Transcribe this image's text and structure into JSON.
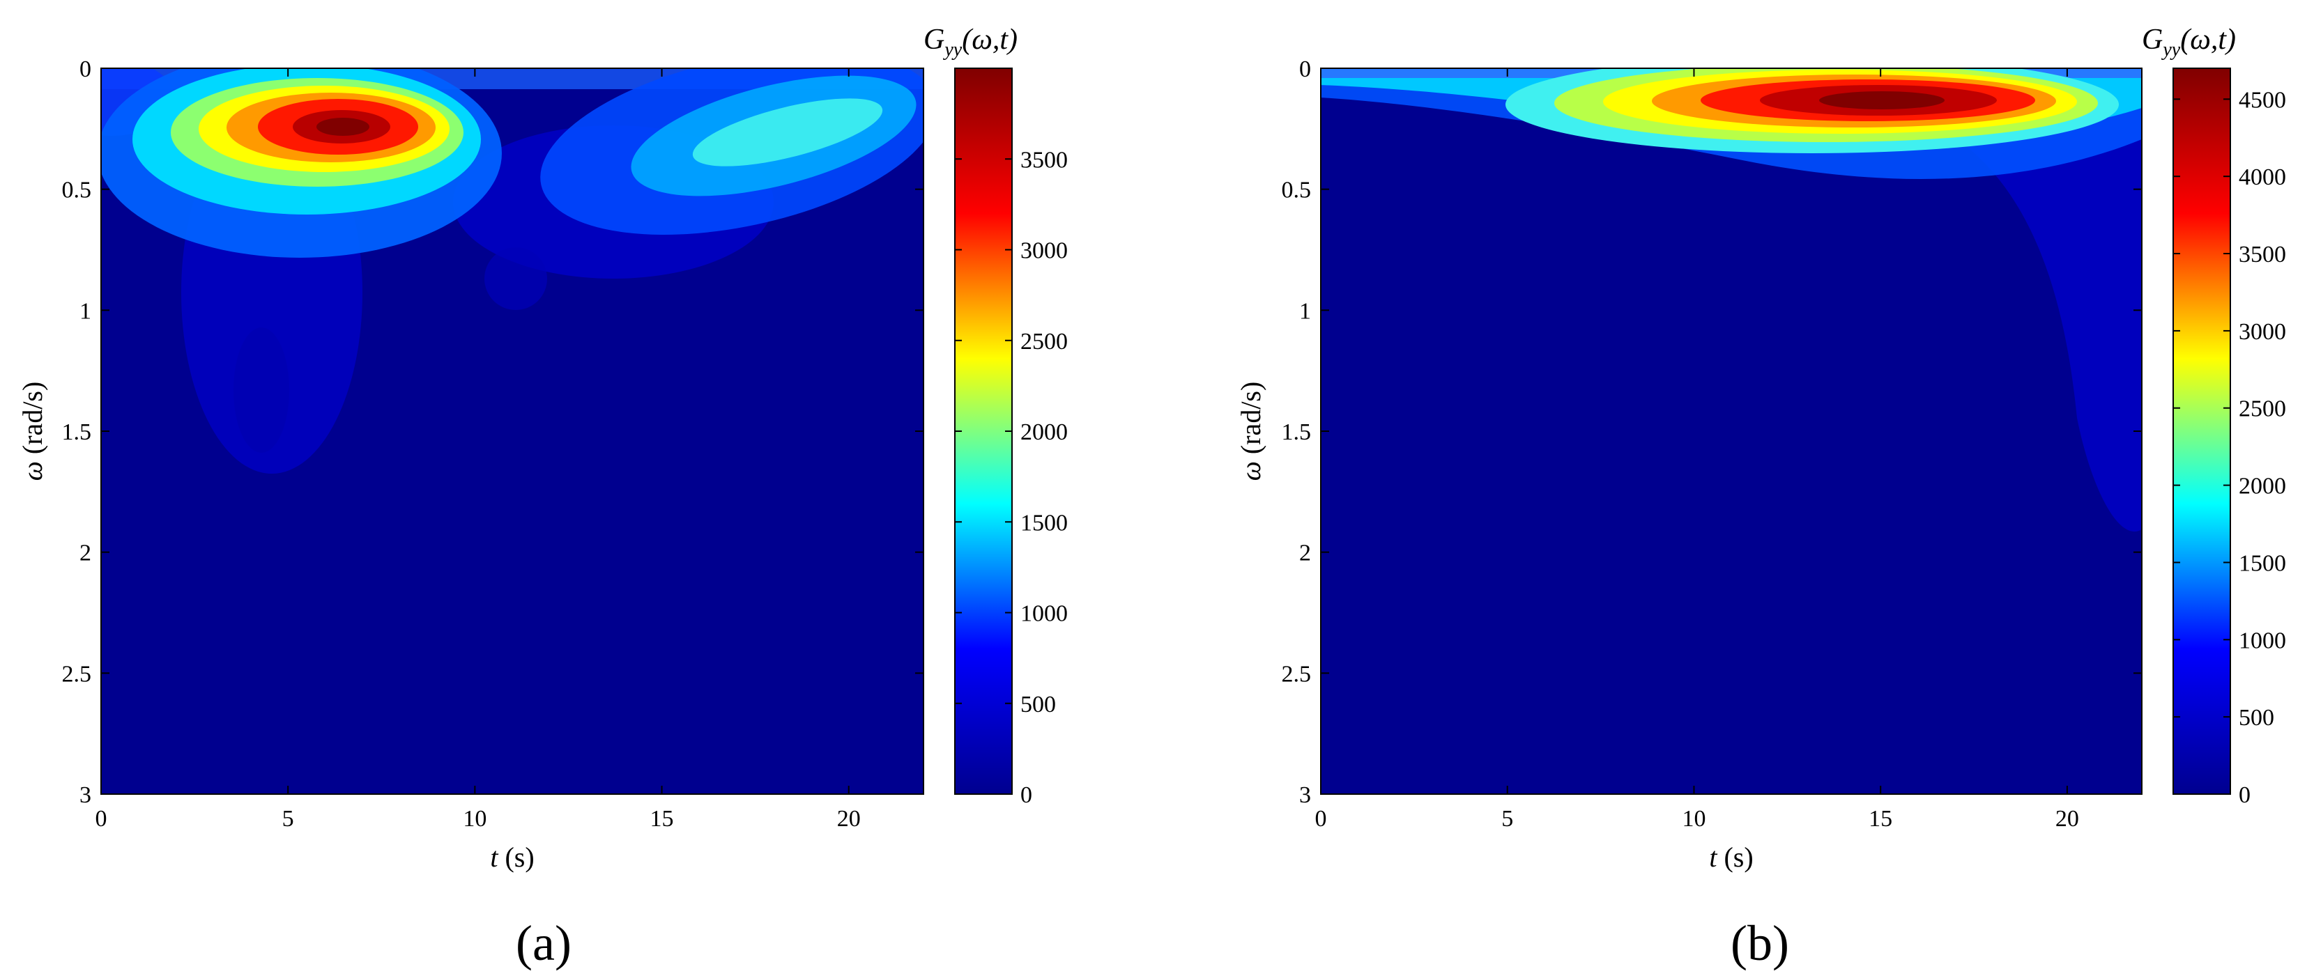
{
  "chart_data": [
    {
      "type": "heatmap",
      "panel_label": "(a)",
      "xlabel": {
        "var": "t",
        "unit": " (s)"
      },
      "ylabel": {
        "var": "ω",
        "unit": " (rad/s)"
      },
      "xlim": [
        0,
        22
      ],
      "ylim": [
        0,
        3
      ],
      "y_reversed": true,
      "x_ticks": [
        "0",
        "5",
        "10",
        "15",
        "20"
      ],
      "x_tick_values": [
        0,
        5,
        10,
        15,
        20
      ],
      "y_ticks": [
        "0",
        "0.5",
        "1",
        "1.5",
        "2",
        "2.5",
        "3"
      ],
      "y_tick_values": [
        0,
        0.5,
        1,
        1.5,
        2,
        2.5,
        3
      ],
      "colorbar": {
        "label": {
          "G": "G",
          "sub": "yy",
          "args": "(ω,t)"
        },
        "range": [
          0,
          4000
        ],
        "ticks": [
          "0",
          "500",
          "1000",
          "1500",
          "2000",
          "2500",
          "3000",
          "3500"
        ],
        "tick_values": [
          0,
          500,
          1000,
          1500,
          2000,
          2500,
          3000,
          3500
        ]
      },
      "colormap": [
        "#00008f",
        "#0000ff",
        "#00ffff",
        "#ffff00",
        "#ff0000",
        "#800000"
      ],
      "peaks": [
        {
          "t": 6.8,
          "omega": 0.25,
          "value": 3950
        },
        {
          "t": 19.0,
          "omega": 0.3,
          "value": 1300
        }
      ]
    },
    {
      "type": "heatmap",
      "panel_label": "(b)",
      "xlabel": {
        "var": "t",
        "unit": " (s)"
      },
      "ylabel": {
        "var": "ω",
        "unit": " (rad/s)"
      },
      "xlim": [
        0,
        22
      ],
      "ylim": [
        0,
        3
      ],
      "y_reversed": true,
      "x_ticks": [
        "0",
        "5",
        "10",
        "15",
        "20"
      ],
      "x_tick_values": [
        0,
        5,
        10,
        15,
        20
      ],
      "y_ticks": [
        "0",
        "0.5",
        "1",
        "1.5",
        "2",
        "2.5",
        "3"
      ],
      "y_tick_values": [
        0,
        0.5,
        1,
        1.5,
        2,
        2.5,
        3
      ],
      "colorbar": {
        "label": {
          "G": "G",
          "sub": "yy",
          "args": "(ω,t)"
        },
        "range": [
          0,
          4700
        ],
        "ticks": [
          "0",
          "500",
          "1000",
          "1500",
          "2000",
          "2500",
          "3000",
          "3500",
          "4000",
          "4500"
        ],
        "tick_values": [
          0,
          500,
          1000,
          1500,
          2000,
          2500,
          3000,
          3500,
          4000,
          4500
        ]
      },
      "colormap": [
        "#00008f",
        "#0000ff",
        "#00ffff",
        "#ffff00",
        "#ff0000",
        "#800000"
      ],
      "peaks": [
        {
          "t": 15.0,
          "omega": 0.13,
          "value": 4650
        }
      ]
    }
  ]
}
